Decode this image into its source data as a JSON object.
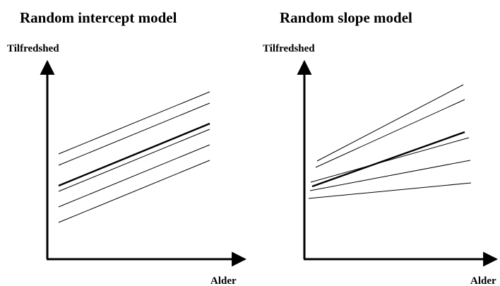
{
  "colors": {
    "background": "#ffffff",
    "ink": "#000000"
  },
  "panels": [
    {
      "title": "Random intercept model",
      "ylabel": "Tilfredshed",
      "xlabel": "Alder"
    },
    {
      "title": "Random slope model",
      "ylabel": "Tilfredshed",
      "xlabel": "Alder"
    }
  ]
}
